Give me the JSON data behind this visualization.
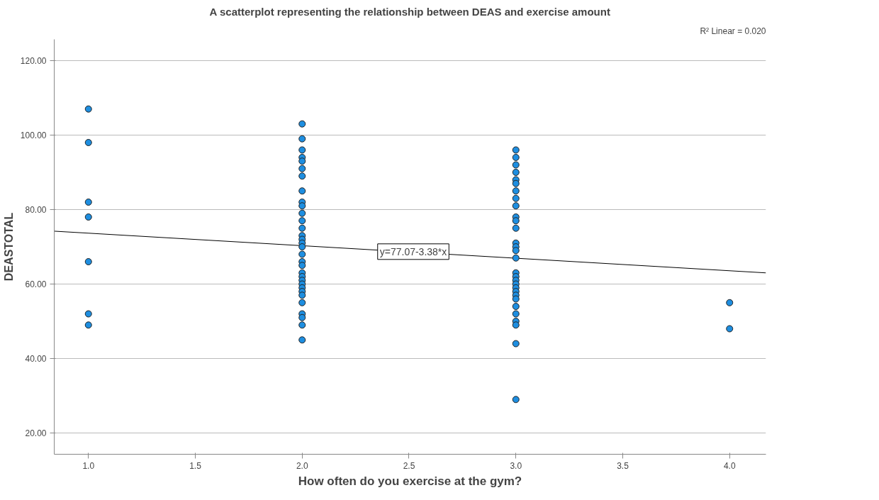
{
  "chart_data": {
    "type": "scatter",
    "title": "A scatterplot representing the relationship between DEAS and exercise amount",
    "xlabel": "How often do you exercise at the gym?",
    "ylabel": "DEASTOTAL",
    "xlim": [
      0.84,
      4.17
    ],
    "ylim": [
      14.3,
      125.7
    ],
    "xticks": [
      {
        "value": 1.0,
        "label": "1.0"
      },
      {
        "value": 1.5,
        "label": "1.5"
      },
      {
        "value": 2.0,
        "label": "2.0"
      },
      {
        "value": 2.5,
        "label": "2.5"
      },
      {
        "value": 3.0,
        "label": "3.0"
      },
      {
        "value": 3.5,
        "label": "3.5"
      },
      {
        "value": 4.0,
        "label": "4.0"
      }
    ],
    "yticks": [
      {
        "value": 20,
        "label": "20.00"
      },
      {
        "value": 40,
        "label": "40.00"
      },
      {
        "value": 60,
        "label": "60.00"
      },
      {
        "value": 80,
        "label": "80.00"
      },
      {
        "value": 100,
        "label": "100.00"
      },
      {
        "value": 120,
        "label": "120.00"
      }
    ],
    "grid": "y",
    "series": [
      {
        "marker": "circle",
        "color": "#1e8ee0",
        "x": [
          1,
          1,
          1,
          1,
          1,
          1,
          1,
          2,
          2,
          2,
          2,
          2,
          2,
          2,
          2,
          2,
          2,
          2,
          2,
          2,
          2,
          2,
          2,
          2,
          2,
          2,
          2,
          2,
          2,
          2,
          2,
          2,
          2,
          2,
          2,
          2,
          2,
          2,
          2,
          3,
          3,
          3,
          3,
          3,
          3,
          3,
          3,
          3,
          3,
          3,
          3,
          3,
          3,
          3,
          3,
          3,
          3,
          3,
          3,
          3,
          3,
          3,
          3,
          3,
          3,
          3,
          3,
          3,
          3,
          4,
          4
        ],
        "values": [
          107,
          98,
          82,
          78,
          66,
          52,
          49,
          103,
          99,
          96,
          94,
          93,
          91,
          89,
          85,
          82,
          81,
          79,
          77,
          75,
          73,
          72,
          71,
          70,
          68,
          66,
          65,
          63,
          62,
          61,
          60,
          59,
          58,
          57,
          55,
          52,
          51,
          49,
          45,
          96,
          94,
          92,
          90,
          88,
          87,
          85,
          83,
          81,
          78,
          77,
          75,
          71,
          70,
          69,
          67,
          63,
          62,
          61,
          60,
          59,
          58,
          57,
          56,
          54,
          52,
          50,
          49,
          44,
          29,
          55,
          48
        ]
      },
      {
        "type": "line",
        "color": "#000000",
        "x": [
          0.84,
          4.17
        ],
        "values": [
          74.2,
          63.0
        ]
      }
    ],
    "annotations": [
      {
        "text": "y=77.07-3.38*x",
        "x": 2.52,
        "y": 68.7
      },
      "R² Linear = 0.020"
    ]
  }
}
